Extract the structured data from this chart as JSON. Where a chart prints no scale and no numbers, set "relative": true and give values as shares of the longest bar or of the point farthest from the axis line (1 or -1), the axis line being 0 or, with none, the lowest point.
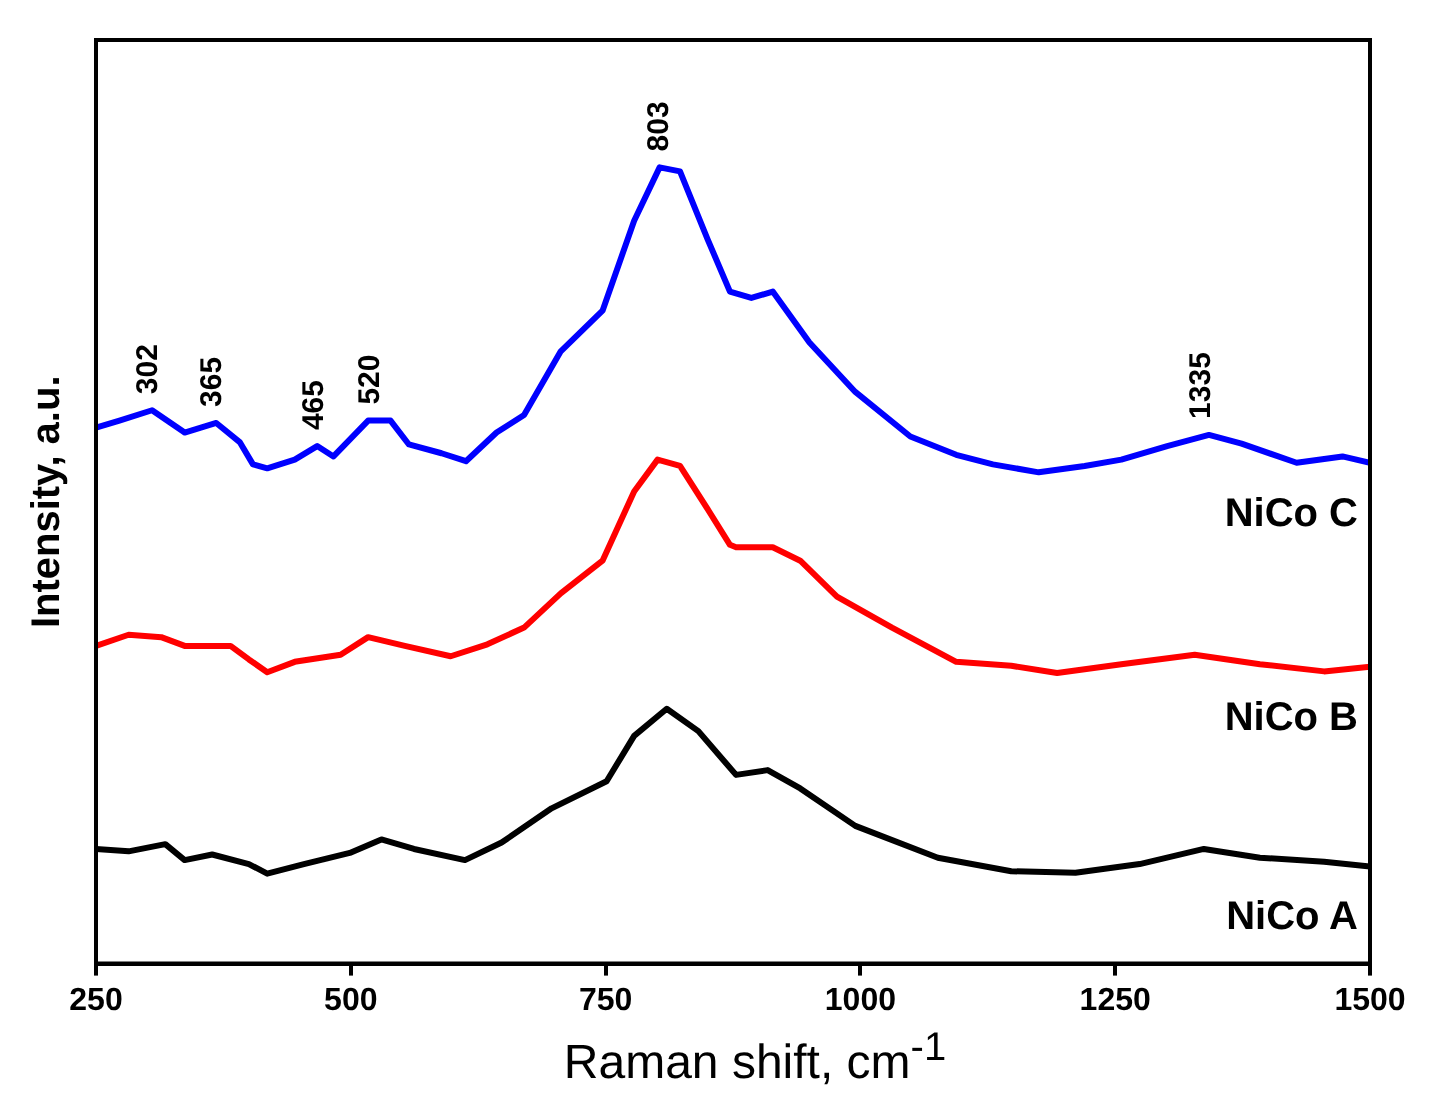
{
  "chart_data": {
    "type": "line",
    "xlabel": "Raman shift, cm$^{-1}$",
    "ylabel": "Intensity, a.u.",
    "relative": true,
    "marker": "none",
    "legend": false,
    "xlim": [
      250,
      1500
    ],
    "xticks": [
      250,
      500,
      750,
      1000,
      1250,
      1500
    ],
    "x": [
      250,
      273,
      305,
      337,
      368,
      391,
      404,
      418,
      445,
      467,
      483,
      517,
      539,
      557,
      589,
      613,
      643,
      670,
      706,
      747,
      778,
      803,
      823,
      850,
      872,
      893,
      914,
      950,
      995,
      1049,
      1094,
      1130,
      1175,
      1220,
      1256,
      1301,
      1342,
      1374,
      1428,
      1473,
      1500
    ],
    "series": [
      {
        "name": "NiCo C",
        "color": "#0000ff",
        "values": [
          0.673,
          0.682,
          0.695,
          0.667,
          0.679,
          0.655,
          0.627,
          0.622,
          0.633,
          0.65,
          0.637,
          0.682,
          0.682,
          0.652,
          0.641,
          0.631,
          0.667,
          0.689,
          0.769,
          0.82,
          0.933,
          1.0,
          0.995,
          0.91,
          0.844,
          0.836,
          0.844,
          0.78,
          0.718,
          0.662,
          0.639,
          0.627,
          0.617,
          0.625,
          0.633,
          0.65,
          0.664,
          0.653,
          0.629,
          0.637,
          0.629
        ]
      },
      {
        "name": "NiCo B",
        "color": "#ff0000",
        "x": [
          250,
          282,
          314,
          337,
          382,
          400,
          418,
          445,
          490,
          517,
          553,
          598,
          634,
          670,
          706,
          747,
          778,
          801,
          823,
          850,
          872,
          878,
          914,
          941,
          977,
          1031,
          1094,
          1148,
          1193,
          1256,
          1328,
          1392,
          1455,
          1500
        ],
        "values": [
          0.399,
          0.413,
          0.41,
          0.399,
          0.399,
          0.382,
          0.366,
          0.379,
          0.388,
          0.41,
          0.399,
          0.386,
          0.401,
          0.422,
          0.465,
          0.506,
          0.593,
          0.633,
          0.625,
          0.571,
          0.526,
          0.523,
          0.523,
          0.506,
          0.461,
          0.422,
          0.379,
          0.374,
          0.365,
          0.376,
          0.388,
          0.376,
          0.367,
          0.373
        ]
      },
      {
        "name": "NiCo A",
        "color": "#000000",
        "x": [
          250,
          282,
          318,
          337,
          364,
          400,
          418,
          454,
          499,
          530,
          562,
          612,
          648,
          697,
          751,
          778,
          810,
          841,
          878,
          909,
          941,
          995,
          1076,
          1148,
          1211,
          1274,
          1337,
          1392,
          1455,
          1500
        ],
        "values": [
          0.144,
          0.141,
          0.15,
          0.13,
          0.137,
          0.125,
          0.113,
          0.125,
          0.139,
          0.156,
          0.144,
          0.13,
          0.152,
          0.195,
          0.229,
          0.286,
          0.32,
          0.292,
          0.237,
          0.243,
          0.22,
          0.173,
          0.133,
          0.116,
          0.114,
          0.125,
          0.144,
          0.133,
          0.128,
          0.122
        ]
      }
    ],
    "annotations": [
      {
        "text": "302",
        "x": 302,
        "y": 0.695
      },
      {
        "text": "365",
        "x": 365,
        "y": 0.679
      },
      {
        "text": "465",
        "x": 465,
        "y": 0.65
      },
      {
        "text": "520",
        "x": 520,
        "y": 0.682
      },
      {
        "text": "803",
        "x": 803,
        "y": 1.0
      },
      {
        "text": "1335",
        "x": 1335,
        "y": 0.664
      }
    ]
  }
}
